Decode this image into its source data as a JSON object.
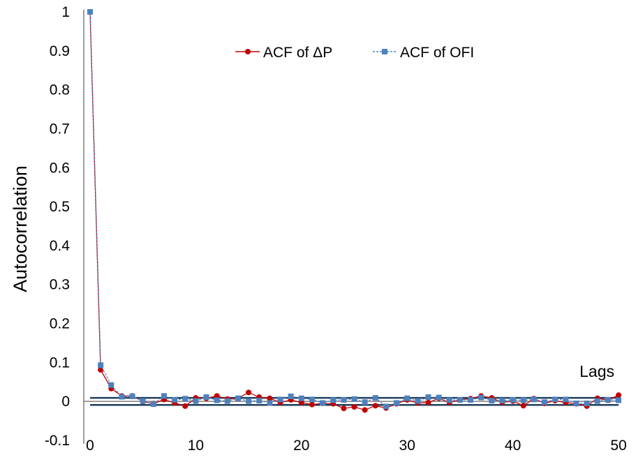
{
  "chart_data": {
    "type": "line",
    "xlabel": "Lags",
    "ylabel": "Autocorrelation",
    "xlim": [
      0,
      50
    ],
    "ylim": [
      -0.1,
      1
    ],
    "x_ticks": [
      "0",
      "10",
      "20",
      "30",
      "40",
      "50"
    ],
    "y_ticks": [
      "-0.1",
      "0",
      "0.1",
      "0.2",
      "0.3",
      "0.4",
      "0.5",
      "0.6",
      "0.7",
      "0.8",
      "0.9",
      "1"
    ],
    "confidence_bounds": [
      0.009,
      -0.009
    ],
    "legend_position": "top-center",
    "series": [
      {
        "name": "ACF of ΔP",
        "color": "#C00000",
        "marker": "circle",
        "line": "solid",
        "x": [
          0,
          1,
          2,
          3,
          4,
          5,
          6,
          7,
          8,
          9,
          10,
          11,
          12,
          13,
          14,
          15,
          16,
          17,
          18,
          19,
          20,
          21,
          22,
          23,
          24,
          25,
          26,
          27,
          28,
          29,
          30,
          31,
          32,
          33,
          34,
          35,
          36,
          37,
          38,
          39,
          40,
          41,
          42,
          43,
          44,
          45,
          46,
          47,
          48,
          49,
          50
        ],
        "values": [
          1.0,
          0.081,
          0.033,
          0.014,
          0.014,
          0.0,
          -0.006,
          0.005,
          -0.004,
          -0.012,
          0.009,
          0.008,
          0.014,
          0.006,
          0.008,
          0.023,
          0.011,
          0.008,
          -0.003,
          0.004,
          -0.003,
          -0.008,
          -0.005,
          -0.006,
          -0.018,
          -0.014,
          -0.022,
          -0.011,
          -0.017,
          -0.006,
          0.004,
          -0.004,
          -0.003,
          0.008,
          -0.003,
          0.004,
          0.007,
          0.014,
          0.009,
          -0.003,
          0.001,
          -0.011,
          0.007,
          -0.005,
          0.002,
          -0.003,
          -0.006,
          -0.012,
          0.008,
          0.003,
          0.016
        ]
      },
      {
        "name": "ACF of OFI",
        "color": "#4F81BD",
        "marker": "square",
        "line": "dashed",
        "x": [
          0,
          1,
          2,
          3,
          4,
          5,
          6,
          7,
          8,
          9,
          10,
          11,
          12,
          13,
          14,
          15,
          16,
          17,
          18,
          19,
          20,
          21,
          22,
          23,
          24,
          25,
          26,
          27,
          28,
          29,
          30,
          31,
          32,
          33,
          34,
          35,
          36,
          37,
          38,
          39,
          40,
          41,
          42,
          43,
          44,
          45,
          46,
          47,
          48,
          49,
          50
        ],
        "values": [
          1.0,
          0.093,
          0.042,
          0.012,
          0.013,
          0.001,
          -0.007,
          0.014,
          0.004,
          0.007,
          0.001,
          0.011,
          0.003,
          0.001,
          0.008,
          0.001,
          0.002,
          -0.004,
          0.005,
          0.013,
          0.008,
          0.005,
          -0.004,
          0.003,
          0.004,
          0.006,
          -0.002,
          0.009,
          -0.013,
          -0.004,
          0.008,
          0.001,
          0.011,
          0.01,
          0.003,
          0.004,
          0.004,
          0.01,
          0.002,
          0.002,
          0.004,
          0.003,
          0.005,
          -0.002,
          0.005,
          0.005,
          -0.005,
          -0.005,
          0.001,
          0.004,
          0.003
        ]
      }
    ]
  }
}
